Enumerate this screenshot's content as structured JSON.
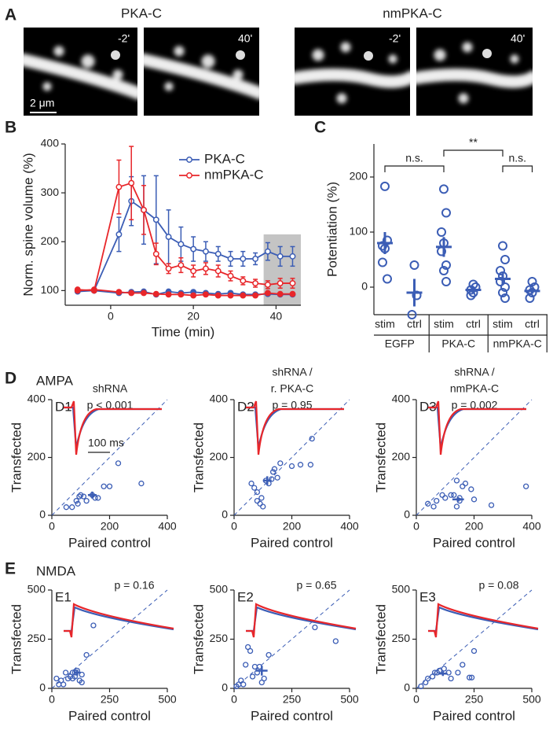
{
  "panel_a": {
    "letter": "A",
    "groups": [
      {
        "title": "PKA-C",
        "labels": [
          "-2'",
          "40'"
        ]
      },
      {
        "title": "nmPKA-C",
        "labels": [
          "-2'",
          "40'"
        ]
      }
    ],
    "scale_bar": "2 μm"
  },
  "chart_data": [
    {
      "type": "line",
      "panel": "B",
      "xlabel": "Time (min)",
      "ylabel": "Norm. spine volume (%)",
      "x": [
        -8,
        -4,
        2,
        5,
        8,
        11,
        14,
        17,
        20,
        23,
        26,
        29,
        32,
        35,
        38,
        41,
        44
      ],
      "series": [
        {
          "name": "PKA-C",
          "color": "#3b5db5",
          "values": [
            100,
            100,
            215,
            283,
            265,
            245,
            210,
            195,
            185,
            180,
            175,
            165,
            165,
            165,
            180,
            170,
            170
          ],
          "errors": [
            3,
            3,
            35,
            50,
            70,
            90,
            55,
            35,
            25,
            20,
            15,
            15,
            15,
            12,
            18,
            20,
            20
          ]
        },
        {
          "color": "#3b5db5",
          "values": [
            98,
            100,
            95,
            97,
            98,
            92,
            98,
            95,
            97,
            95,
            93,
            95,
            92,
            92,
            93,
            92,
            92
          ]
        },
        {
          "name": "nmPKA-C",
          "color": "#e8262a",
          "values": [
            102,
            100,
            312,
            320,
            265,
            175,
            145,
            152,
            140,
            145,
            140,
            130,
            120,
            115,
            112,
            115,
            115
          ],
          "errors": [
            3,
            3,
            55,
            75,
            50,
            22,
            10,
            15,
            12,
            12,
            12,
            10,
            8,
            8,
            8,
            10,
            10
          ]
        },
        {
          "color": "#e8262a",
          "values": [
            100,
            102,
            97,
            95,
            95,
            93,
            92,
            92,
            90,
            92,
            90,
            90,
            90,
            90,
            95,
            93,
            93
          ]
        }
      ],
      "shaded_region": {
        "x": [
          37,
          46
        ],
        "y": [
          70,
          215
        ],
        "color": "#c4c4c4"
      },
      "xlim": [
        -11,
        46
      ],
      "ylim": [
        70,
        400
      ],
      "xticks": [
        0,
        20,
        40
      ],
      "yticks": [
        100,
        200,
        300,
        400
      ],
      "legend": "upper right"
    },
    {
      "type": "strip",
      "panel": "C",
      "ylabel": "Potentiation (%)",
      "color": "#3b5db5",
      "categories": [
        "stim",
        "ctrl",
        "stim",
        "ctrl",
        "stim",
        "ctrl"
      ],
      "groups": [
        "EGFP",
        "PKA-C",
        "nmPKA-C"
      ],
      "points": [
        [
          183,
          85,
          75,
          70,
          45,
          15
        ],
        [
          40,
          -15,
          -50
        ],
        [
          178,
          135,
          100,
          80,
          65,
          40,
          30,
          10
        ],
        [
          5,
          0,
          -5,
          -10,
          -15
        ],
        [
          75,
          50,
          30,
          20,
          10,
          0,
          -10,
          -20
        ],
        [
          10,
          0,
          -5,
          -10,
          -20
        ]
      ],
      "means": [
        80,
        -10,
        73,
        -5,
        15,
        -7
      ],
      "errors": [
        20,
        25,
        18,
        5,
        10,
        5
      ],
      "significance": [
        {
          "between": [
            0,
            2
          ],
          "label": "n.s."
        },
        {
          "between": [
            2,
            4
          ],
          "label": "**"
        },
        {
          "between": [
            4,
            5
          ],
          "label": "n.s."
        }
      ],
      "ylim": [
        -50,
        260
      ],
      "yticks": [
        0,
        100,
        200
      ]
    },
    {
      "type": "scatter",
      "panel": "D1",
      "letter": "D",
      "section": "AMPA",
      "annotations": [
        "shRNA",
        "p < 0.001"
      ],
      "scale_bar": "100 ms",
      "color": "#3b5db5",
      "diagonal": true,
      "xlabel": "Paired control",
      "ylabel": "Transfected",
      "x": [
        50,
        70,
        90,
        95,
        110,
        120,
        140,
        150,
        160,
        180,
        200,
        230,
        310,
        100,
        85
      ],
      "y": [
        28,
        28,
        40,
        65,
        65,
        50,
        70,
        60,
        60,
        100,
        100,
        180,
        110,
        70,
        50
      ],
      "mean": {
        "x": 140,
        "y": 70,
        "xerr": 15,
        "yerr": 12
      },
      "xlim": [
        0,
        400
      ],
      "ylim": [
        0,
        400
      ],
      "xticks": [
        0,
        200,
        400
      ],
      "yticks": [
        0,
        200,
        400
      ]
    },
    {
      "type": "scatter",
      "panel": "D2",
      "annotations": [
        "shRNA /",
        "r. PKA-C",
        "p = 0.95"
      ],
      "color": "#3b5db5",
      "diagonal": true,
      "xlabel": "Paired control",
      "ylabel": "Transfected",
      "x": [
        60,
        70,
        80,
        90,
        100,
        95,
        110,
        120,
        130,
        135,
        140,
        150,
        160,
        200,
        230,
        265,
        270,
        80
      ],
      "y": [
        110,
        95,
        80,
        40,
        30,
        60,
        120,
        110,
        125,
        150,
        160,
        130,
        180,
        170,
        175,
        175,
        265,
        50
      ],
      "mean": {
        "x": 115,
        "y": 120,
        "xerr": 15,
        "yerr": 15
      },
      "xlim": [
        0,
        400
      ],
      "ylim": [
        0,
        400
      ],
      "xticks": [
        0,
        200,
        400
      ],
      "yticks": [
        0,
        200,
        400
      ]
    },
    {
      "type": "scatter",
      "panel": "D3",
      "annotations": [
        "shRNA /",
        "nmPKA-C",
        "p = 0.002"
      ],
      "color": "#3b5db5",
      "diagonal": true,
      "xlabel": "Paired control",
      "ylabel": "Transfected",
      "x": [
        40,
        60,
        70,
        90,
        100,
        120,
        130,
        140,
        150,
        160,
        170,
        190,
        200,
        260,
        380,
        150,
        140
      ],
      "y": [
        40,
        30,
        50,
        70,
        60,
        70,
        70,
        120,
        60,
        100,
        110,
        90,
        55,
        35,
        100,
        50,
        30
      ],
      "mean": {
        "x": 145,
        "y": 55,
        "xerr": 20,
        "yerr": 8
      },
      "xlim": [
        0,
        400
      ],
      "ylim": [
        0,
        400
      ],
      "xticks": [
        0,
        200,
        400
      ],
      "yticks": [
        0,
        200,
        400
      ]
    },
    {
      "type": "scatter",
      "panel": "E1",
      "letter": "E",
      "section": "NMDA",
      "annotations": [
        "p = 0.16"
      ],
      "color": "#3b5db5",
      "diagonal": true,
      "xlabel": "Paired control",
      "ylabel": "Transfected",
      "x": [
        20,
        30,
        40,
        50,
        60,
        70,
        80,
        90,
        100,
        100,
        110,
        120,
        130,
        130,
        150,
        180,
        90
      ],
      "y": [
        50,
        20,
        40,
        20,
        80,
        50,
        60,
        50,
        60,
        80,
        90,
        40,
        70,
        30,
        170,
        320,
        80
      ],
      "mean": {
        "x": 110,
        "y": 80,
        "xerr": 15,
        "yerr": 15
      },
      "xlim": [
        0,
        500
      ],
      "ylim": [
        0,
        500
      ],
      "xticks": [
        0,
        250,
        500
      ],
      "yticks": [
        0,
        250,
        500
      ]
    },
    {
      "type": "scatter",
      "panel": "E2",
      "annotations": [
        "p = 0.65"
      ],
      "color": "#3b5db5",
      "diagonal": true,
      "xlabel": "Paired control",
      "ylabel": "Transfected",
      "x": [
        10,
        20,
        30,
        40,
        50,
        60,
        70,
        80,
        90,
        100,
        110,
        130,
        150,
        350,
        440,
        120
      ],
      "y": [
        10,
        20,
        40,
        20,
        120,
        210,
        190,
        60,
        110,
        80,
        110,
        50,
        170,
        310,
        240,
        30
      ],
      "mean": {
        "x": 120,
        "y": 90,
        "xerr": 25,
        "yerr": 25
      },
      "xlim": [
        0,
        500
      ],
      "ylim": [
        0,
        500
      ],
      "xticks": [
        0,
        250,
        500
      ],
      "yticks": [
        0,
        250,
        500
      ]
    },
    {
      "type": "scatter",
      "panel": "E3",
      "annotations": [
        "p = 0.08"
      ],
      "color": "#3b5db5",
      "diagonal": true,
      "xlabel": "Paired control",
      "ylabel": "Transfected",
      "x": [
        20,
        40,
        50,
        70,
        80,
        100,
        120,
        140,
        150,
        180,
        200,
        230,
        240,
        250,
        90
      ],
      "y": [
        10,
        30,
        50,
        60,
        80,
        90,
        100,
        80,
        50,
        80,
        120,
        55,
        55,
        190,
        80
      ],
      "mean": {
        "x": 115,
        "y": 75,
        "xerr": 20,
        "yerr": 12
      },
      "xlim": [
        0,
        500
      ],
      "ylim": [
        0,
        500
      ],
      "xticks": [
        0,
        250,
        500
      ],
      "yticks": [
        0,
        250,
        500
      ]
    }
  ]
}
